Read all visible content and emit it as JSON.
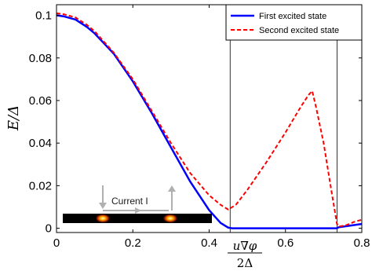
{
  "chart_data": {
    "type": "line",
    "xlim": [
      0,
      0.8
    ],
    "ylim": [
      -0.002,
      0.105
    ],
    "xticks": [
      "0",
      "0.2",
      "0.4",
      "0.6",
      "0.8"
    ],
    "xtick_values": [
      0,
      0.2,
      0.4,
      0.6,
      0.8
    ],
    "yticks": [
      "0",
      "0.02",
      "0.04",
      "0.06",
      "0.08",
      "0.1"
    ],
    "ytick_values": [
      0,
      0.02,
      0.04,
      0.06,
      0.08,
      0.1
    ],
    "ylabel": "E/Δ",
    "xlabel_numerator": "u∇φ",
    "xlabel_denominator": "2Δ",
    "legend_position": "top-right",
    "vlines": [
      0.455,
      0.735
    ],
    "series": [
      {
        "name": "First excited state",
        "color": "#0000ff",
        "style": "solid",
        "x": [
          0,
          0.02,
          0.05,
          0.08,
          0.1,
          0.15,
          0.2,
          0.25,
          0.3,
          0.35,
          0.4,
          0.43,
          0.45,
          0.46,
          0.5,
          0.6,
          0.7,
          0.735,
          0.74,
          0.8
        ],
        "y": [
          0.1,
          0.0995,
          0.098,
          0.0945,
          0.0915,
          0.082,
          0.069,
          0.054,
          0.038,
          0.022,
          0.0085,
          0.0025,
          0.0003,
          0,
          0,
          0,
          0,
          0,
          0.0005,
          0.002
        ]
      },
      {
        "name": "Second excited state",
        "color": "#ff0000",
        "style": "dashed",
        "x": [
          0,
          0.02,
          0.05,
          0.08,
          0.1,
          0.15,
          0.2,
          0.25,
          0.3,
          0.35,
          0.4,
          0.43,
          0.45,
          0.47,
          0.5,
          0.55,
          0.6,
          0.64,
          0.66,
          0.67,
          0.68,
          0.7,
          0.72,
          0.735,
          0.74,
          0.76,
          0.78,
          0.8
        ],
        "y": [
          0.101,
          0.1005,
          0.099,
          0.0955,
          0.0925,
          0.0825,
          0.07,
          0.055,
          0.04,
          0.026,
          0.0155,
          0.011,
          0.0088,
          0.011,
          0.018,
          0.031,
          0.045,
          0.057,
          0.0625,
          0.0645,
          0.057,
          0.04,
          0.018,
          0.002,
          0.0008,
          0.0015,
          0.003,
          0.004
        ]
      }
    ]
  },
  "inset": {
    "label": "Current I"
  }
}
